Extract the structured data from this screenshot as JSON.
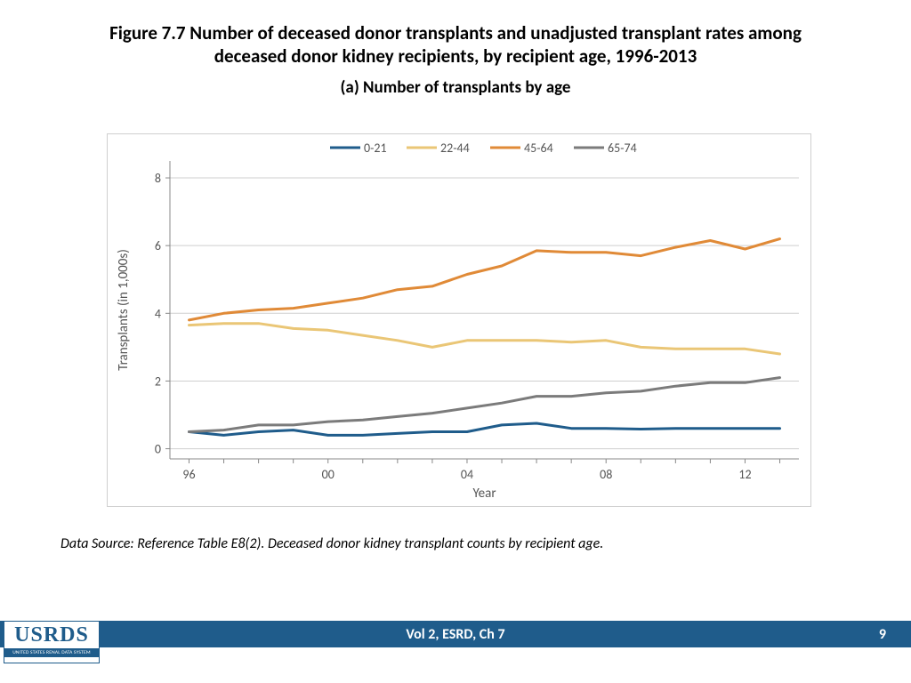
{
  "title": "Figure 7.7 Number of deceased donor transplants and unadjusted transplant rates among deceased donor kidney recipients, by recipient age, 1996-2013",
  "subtitle": "(a)  Number of transplants by age",
  "source_note": "Data Source: Reference Table E8(2). Deceased donor kidney transplant counts by recipient age.",
  "footer_text": "Vol 2, ESRD, Ch 7",
  "page_number": "9",
  "logo": {
    "top": "USRDS",
    "bottom": "UNITED STATES RENAL DATA SYSTEM"
  },
  "chart": {
    "type": "line",
    "background_color": "#ffffff",
    "border_color": "#cfcfcf",
    "grid_color": "#cfcfcf",
    "axis_color": "#888888",
    "tick_color": "#888888",
    "text_color": "#555555",
    "label_fontsize": 15,
    "tick_fontsize": 14,
    "legend_fontsize": 14,
    "line_width": 3,
    "xlabel": "Year",
    "ylabel": "Transplants (in 1,000s)",
    "xlim": [
      95.3,
      13.7
    ],
    "ylim": [
      -0.3,
      8.5
    ],
    "xticks": [
      96,
      100,
      104,
      108,
      112
    ],
    "xtick_labels": [
      "96",
      "00",
      "04",
      "08",
      "12"
    ],
    "yticks": [
      0,
      2,
      4,
      6,
      8
    ],
    "ytick_labels": [
      "0",
      "2",
      "4",
      "6",
      "8"
    ],
    "x_values": [
      96,
      97,
      98,
      99,
      100,
      101,
      102,
      103,
      104,
      105,
      106,
      107,
      108,
      109,
      110,
      111,
      112,
      113
    ],
    "series": [
      {
        "name": "0-21",
        "color": "#1f5c8b",
        "values": [
          0.5,
          0.4,
          0.5,
          0.55,
          0.4,
          0.4,
          0.45,
          0.5,
          0.5,
          0.7,
          0.75,
          0.6,
          0.6,
          0.58,
          0.6,
          0.6,
          0.6,
          0.6
        ]
      },
      {
        "name": "22-44",
        "color": "#eac676",
        "values": [
          3.65,
          3.7,
          3.7,
          3.55,
          3.5,
          3.35,
          3.2,
          3.0,
          3.2,
          3.2,
          3.2,
          3.15,
          3.2,
          3.0,
          2.95,
          2.95,
          2.95,
          2.8
        ]
      },
      {
        "name": "45-64",
        "color": "#e08a37",
        "values": [
          3.8,
          4.0,
          4.1,
          4.15,
          4.3,
          4.45,
          4.7,
          4.8,
          5.15,
          5.4,
          5.85,
          5.8,
          5.8,
          5.7,
          5.95,
          6.15,
          5.9,
          6.2
        ]
      },
      {
        "name": "65-74",
        "color": "#7b7b7b",
        "values": [
          0.5,
          0.55,
          0.7,
          0.7,
          0.8,
          0.85,
          0.95,
          1.05,
          1.2,
          1.35,
          1.55,
          1.55,
          1.65,
          1.7,
          1.85,
          1.95,
          1.95,
          2.1
        ]
      }
    ]
  }
}
